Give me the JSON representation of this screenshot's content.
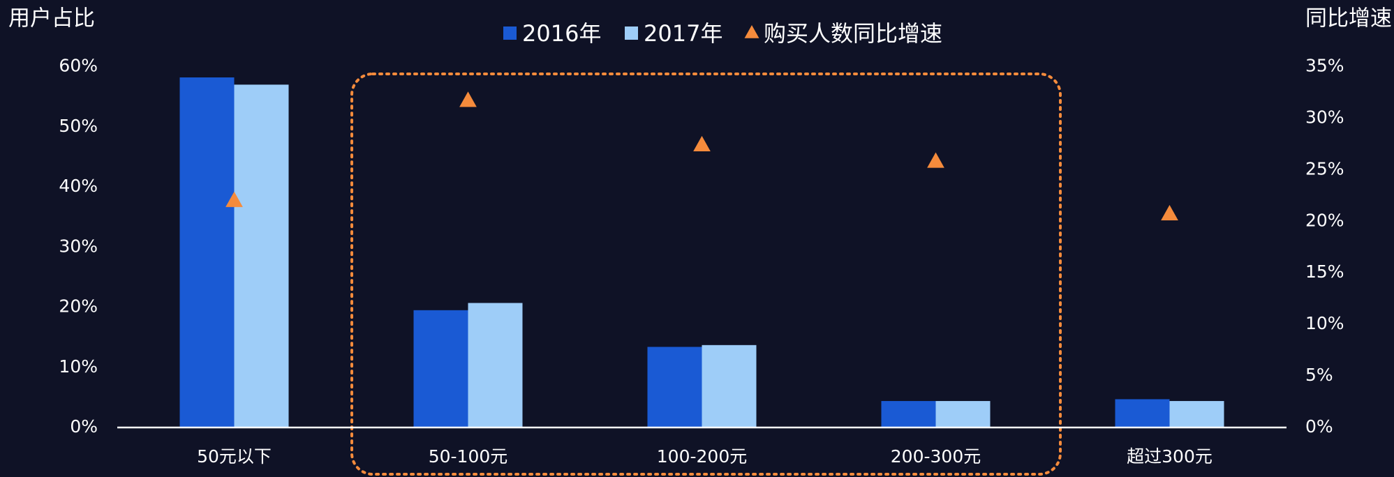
{
  "chart_data": {
    "type": "bar",
    "y_label": "用户占比",
    "y2_label": "同比增速",
    "categories": [
      "50元以下",
      "50-100元",
      "100-200元",
      "200-300元",
      "超过300元"
    ],
    "series": [
      {
        "name": "2016年",
        "type": "bar",
        "color": "#1a5ad4",
        "values": [
          58.2,
          19.5,
          13.4,
          4.4,
          4.7
        ]
      },
      {
        "name": "2017年",
        "type": "bar",
        "color": "#9ecdf8",
        "values": [
          57.0,
          20.7,
          13.7,
          4.4,
          4.4
        ]
      },
      {
        "name": "购买人数同比增速",
        "type": "scatter",
        "axis": "y2",
        "color": "#f58b3c",
        "values": [
          22.0,
          31.7,
          27.4,
          25.8,
          20.7
        ]
      }
    ],
    "ylim": [
      0,
      60
    ],
    "yticks": [
      {
        "value": 0,
        "label": "0%"
      },
      {
        "value": 10,
        "label": "10%"
      },
      {
        "value": 20,
        "label": "20%"
      },
      {
        "value": 30,
        "label": "30%"
      },
      {
        "value": 40,
        "label": "40%"
      },
      {
        "value": 50,
        "label": "50%"
      },
      {
        "value": 60,
        "label": "60%"
      }
    ],
    "y2lim": [
      0,
      35
    ],
    "y2ticks": [
      {
        "value": 0,
        "label": "0%"
      },
      {
        "value": 5,
        "label": "5%"
      },
      {
        "value": 10,
        "label": "10%"
      },
      {
        "value": 15,
        "label": "15%"
      },
      {
        "value": 20,
        "label": "20%"
      },
      {
        "value": 25,
        "label": "25%"
      },
      {
        "value": 30,
        "label": "30%"
      },
      {
        "value": 35,
        "label": "35%"
      }
    ]
  }
}
